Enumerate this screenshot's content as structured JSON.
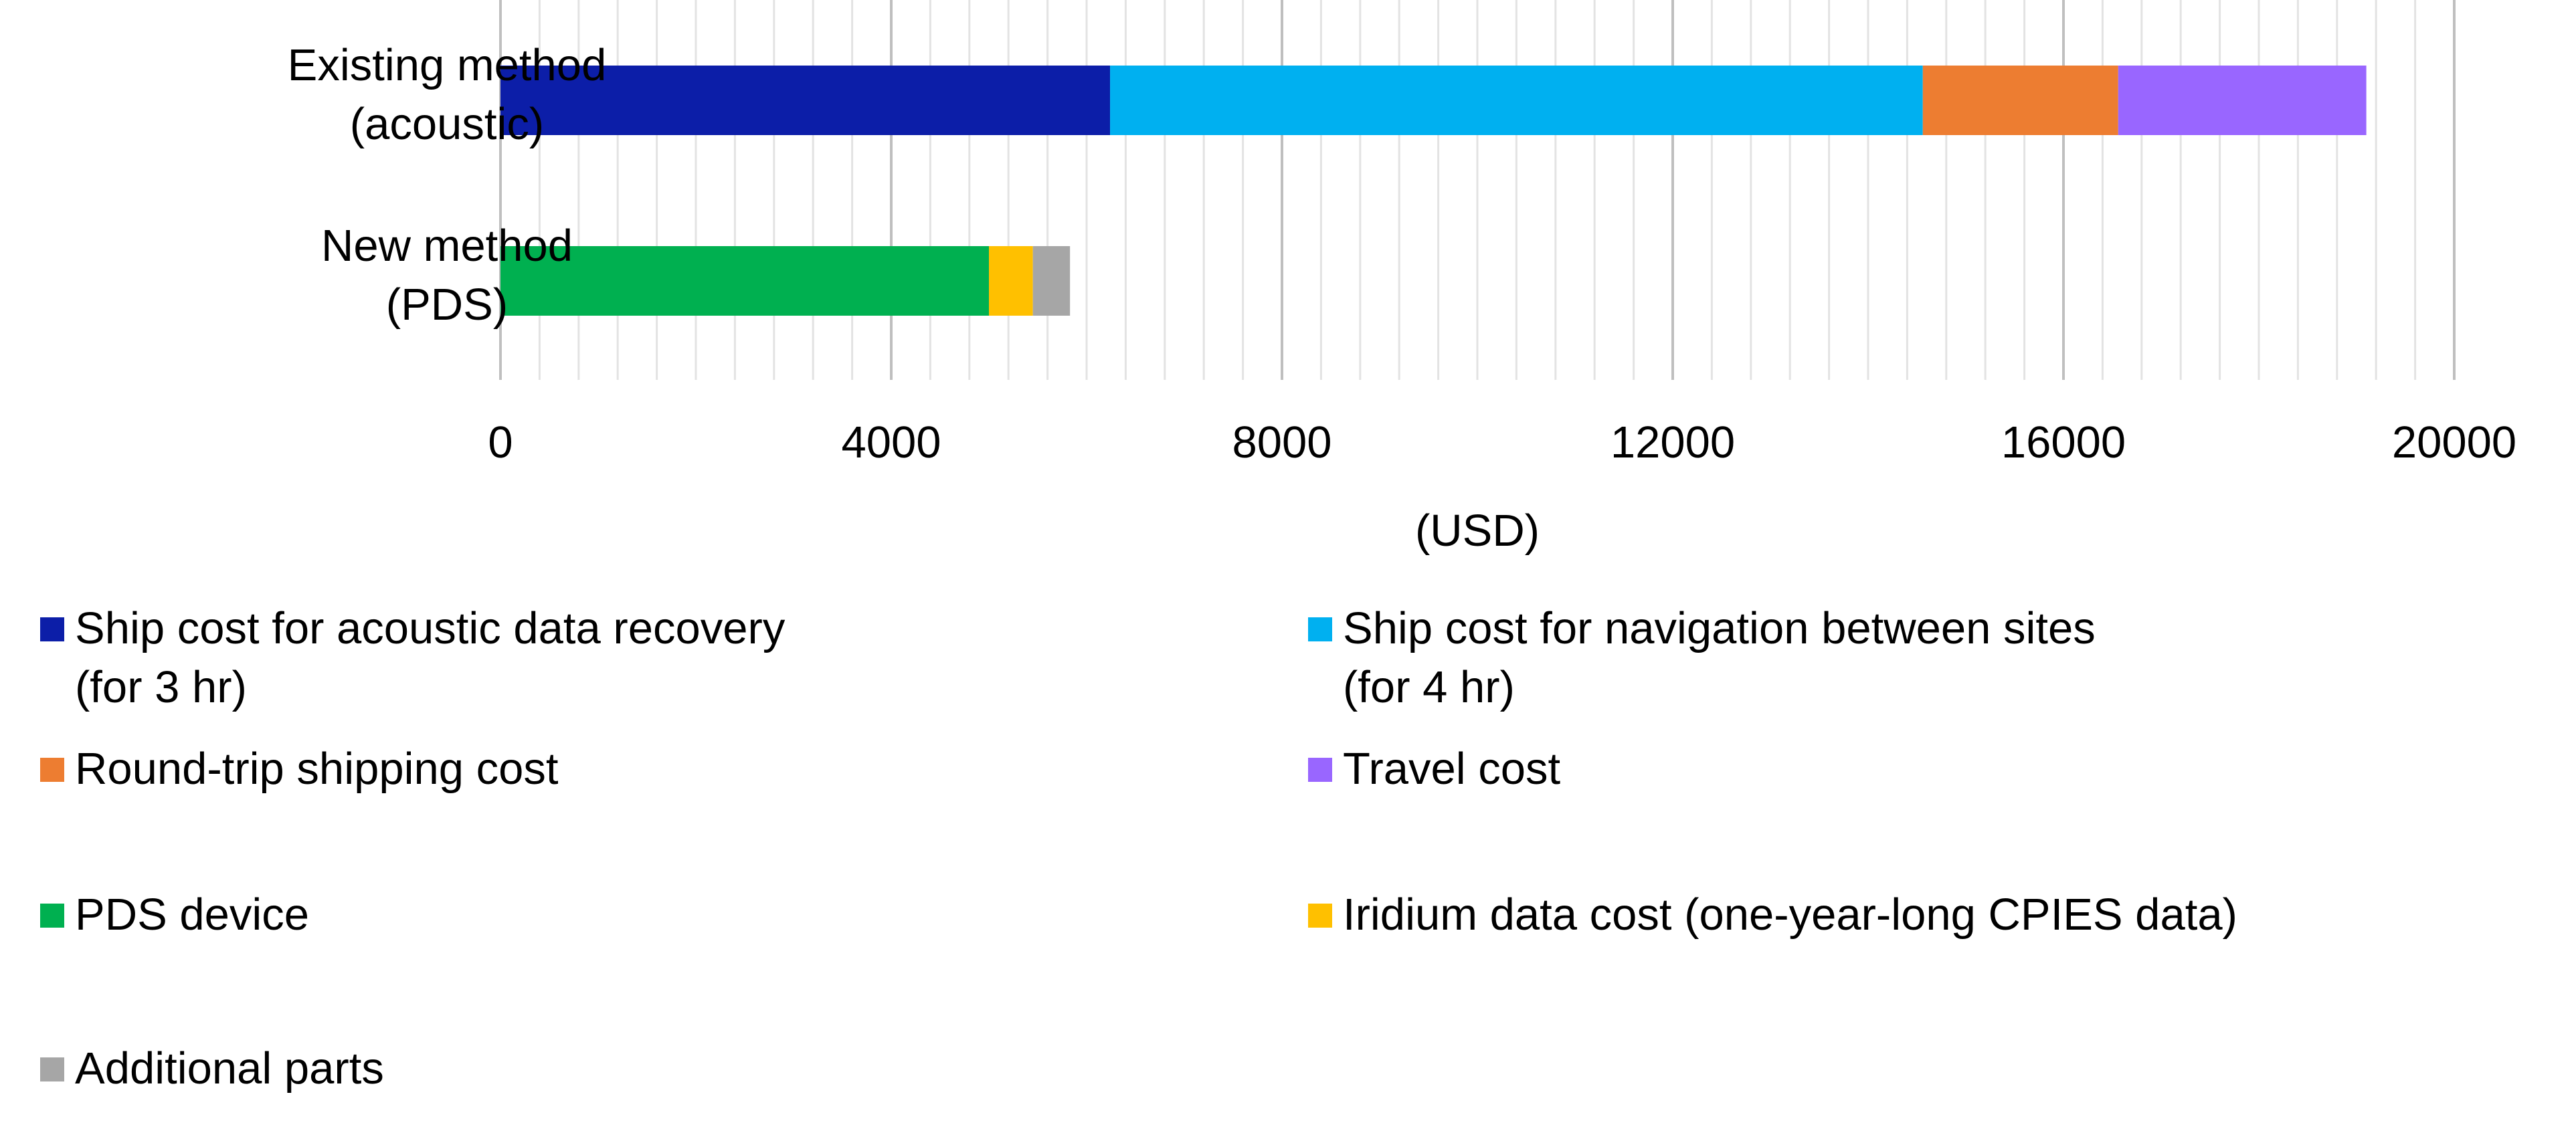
{
  "chart_data": {
    "type": "bar",
    "orientation": "horizontal",
    "stacked": true,
    "categories": [
      "Existing method\n(acoustic)",
      "New method\n(PDS)"
    ],
    "series": [
      {
        "name": "Ship cost for acoustic data recovery\n(for 3 hr)",
        "color": "#0c1ea8",
        "values": [
          6240,
          0
        ]
      },
      {
        "name": "Ship cost for navigation between sites\n(for 4 hr)",
        "color": "#00b0f0",
        "values": [
          8320,
          0
        ]
      },
      {
        "name": "Round-trip shipping cost",
        "color": "#ed7d31",
        "values": [
          2000,
          0
        ]
      },
      {
        "name": "Travel cost",
        "color": "#9966ff",
        "values": [
          2540,
          0
        ]
      },
      {
        "name": "PDS device",
        "color": "#00b050",
        "values": [
          0,
          5000
        ]
      },
      {
        "name": "Iridium data cost (one-year-long CPIES data)",
        "color": "#ffc000",
        "values": [
          0,
          450
        ]
      },
      {
        "name": "Additional parts",
        "color": "#a6a6a6",
        "values": [
          0,
          380
        ]
      }
    ],
    "xlim": [
      0,
      20000
    ],
    "x_ticks": [
      0,
      4000,
      8000,
      12000,
      16000,
      20000
    ],
    "x_minor_step": 400,
    "xlabel": "(USD)",
    "ylabel": "",
    "grid": "vertical",
    "legend_position": "bottom"
  }
}
